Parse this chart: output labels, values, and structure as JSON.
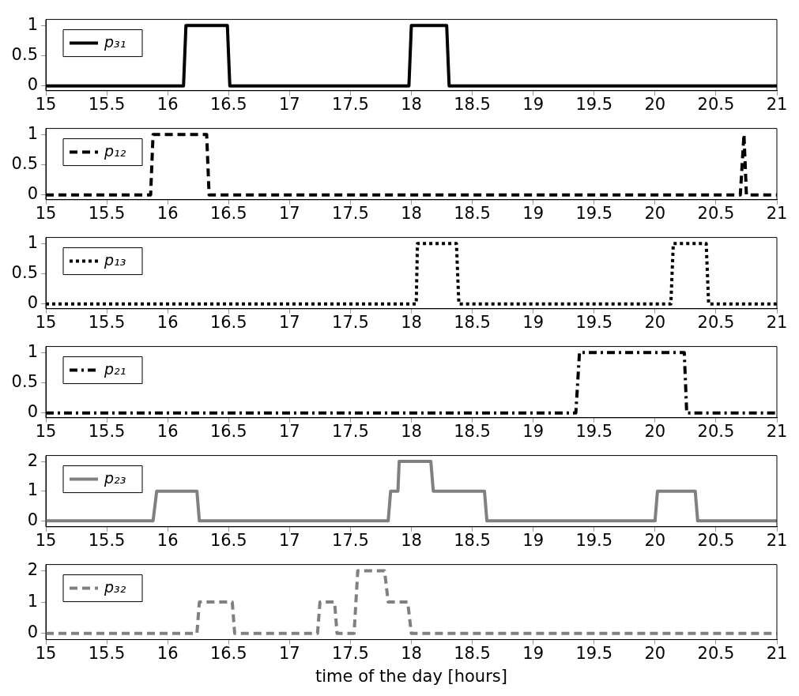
{
  "chart_data": [
    {
      "type": "line",
      "x": [
        15,
        16.13,
        16.15,
        16.49,
        16.51,
        17.98,
        18.0,
        18.29,
        18.31,
        21
      ],
      "series": [
        {
          "name": "p₃₁",
          "color": "#000000",
          "values": [
            0,
            0,
            1,
            1,
            0,
            0,
            1,
            1,
            0,
            0
          ]
        }
      ],
      "line_style": "solid",
      "xlim": [
        15,
        21
      ],
      "xticks": [
        15,
        15.5,
        16,
        16.5,
        17,
        17.5,
        18,
        18.5,
        19,
        19.5,
        20,
        20.5,
        21
      ],
      "ylim": [
        -0.08,
        1.1
      ],
      "yticks": [
        0,
        0.5,
        1
      ],
      "legend": "top left",
      "grid": false
    },
    {
      "type": "line",
      "x": [
        15,
        15.86,
        15.88,
        16.32,
        16.34,
        20.7,
        20.73,
        20.75,
        21
      ],
      "series": [
        {
          "name": "p₁₂",
          "color": "#000000",
          "values": [
            0,
            0,
            1,
            1,
            0,
            0,
            1,
            0,
            0
          ]
        }
      ],
      "line_style": "dashed",
      "xlim": [
        15,
        21
      ],
      "xticks": [
        15,
        15.5,
        16,
        16.5,
        17,
        17.5,
        18,
        18.5,
        19,
        19.5,
        20,
        20.5,
        21
      ],
      "ylim": [
        -0.08,
        1.1
      ],
      "yticks": [
        0,
        0.5,
        1
      ],
      "legend": "top left",
      "grid": false
    },
    {
      "type": "line",
      "x": [
        15,
        18.04,
        18.05,
        18.37,
        18.39,
        20.13,
        20.15,
        20.42,
        20.44,
        21
      ],
      "series": [
        {
          "name": "p₁₃",
          "color": "#000000",
          "values": [
            0,
            0,
            1,
            1,
            0,
            0,
            1,
            1,
            0,
            0
          ]
        }
      ],
      "line_style": "dotted",
      "xlim": [
        15,
        21
      ],
      "xticks": [
        15,
        15.5,
        16,
        16.5,
        17,
        17.5,
        18,
        18.5,
        19,
        19.5,
        20,
        20.5,
        21
      ],
      "ylim": [
        -0.08,
        1.1
      ],
      "yticks": [
        0,
        0.5,
        1
      ],
      "legend": "top left",
      "grid": false
    },
    {
      "type": "line",
      "x": [
        15,
        19.35,
        19.38,
        20.24,
        20.26,
        21
      ],
      "series": [
        {
          "name": "p₂₁",
          "color": "#000000",
          "values": [
            0,
            0,
            1,
            1,
            0,
            0
          ]
        }
      ],
      "line_style": "dashdot",
      "xlim": [
        15,
        21
      ],
      "xticks": [
        15,
        15.5,
        16,
        16.5,
        17,
        17.5,
        18,
        18.5,
        19,
        19.5,
        20,
        20.5,
        21
      ],
      "ylim": [
        -0.08,
        1.1
      ],
      "yticks": [
        0,
        0.5,
        1
      ],
      "legend": "top left",
      "grid": false
    },
    {
      "type": "line",
      "x": [
        15,
        15.88,
        15.91,
        16.24,
        16.26,
        17.81,
        17.83,
        17.89,
        17.9,
        18.16,
        18.18,
        18.6,
        18.62,
        20.0,
        20.02,
        20.33,
        20.35,
        21
      ],
      "series": [
        {
          "name": "p₂₃",
          "color": "#808080",
          "values": [
            0,
            0,
            1,
            1,
            0,
            0,
            1,
            1,
            2,
            2,
            1,
            1,
            0,
            0,
            1,
            1,
            0,
            0
          ]
        }
      ],
      "line_style": "solid",
      "xlim": [
        15,
        21
      ],
      "xticks": [
        15,
        15.5,
        16,
        16.5,
        17,
        17.5,
        18,
        18.5,
        19,
        19.5,
        20,
        20.5,
        21
      ],
      "ylim": [
        -0.2,
        2.2
      ],
      "yticks": [
        0,
        1,
        2
      ],
      "legend": "top left",
      "grid": false
    },
    {
      "type": "line",
      "x": [
        15,
        16.24,
        16.26,
        16.53,
        16.55,
        17.23,
        17.25,
        17.37,
        17.39,
        17.53,
        17.56,
        17.78,
        17.81,
        17.97,
        18.0,
        21
      ],
      "series": [
        {
          "name": "p₃₂",
          "color": "#808080",
          "values": [
            0,
            0,
            1,
            1,
            0,
            0,
            1,
            1,
            0,
            0,
            2,
            2,
            1,
            1,
            0,
            0
          ]
        }
      ],
      "line_style": "dashed",
      "xlim": [
        15,
        21
      ],
      "xticks": [
        15,
        15.5,
        16,
        16.5,
        17,
        17.5,
        18,
        18.5,
        19,
        19.5,
        20,
        20.5,
        21
      ],
      "ylim": [
        -0.2,
        2.2
      ],
      "yticks": [
        0,
        1,
        2
      ],
      "legend": "top left",
      "grid": false,
      "xlabel": "time of the day [hours]"
    }
  ]
}
